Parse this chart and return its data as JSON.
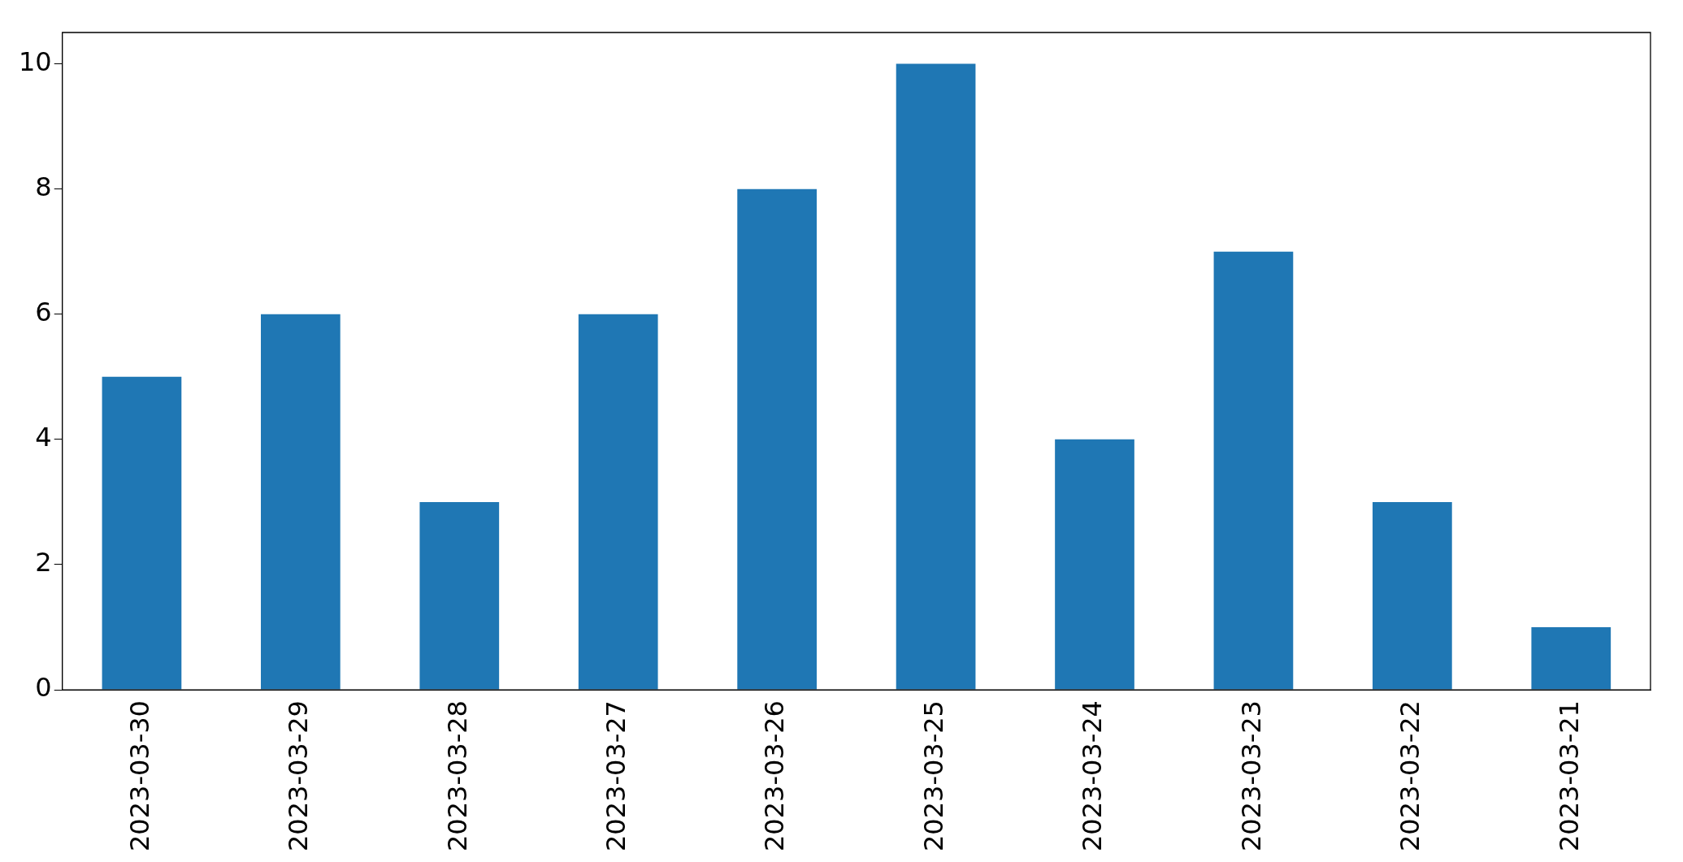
{
  "chart_data": {
    "type": "bar",
    "categories": [
      "2023-03-30",
      "2023-03-29",
      "2023-03-28",
      "2023-03-27",
      "2023-03-26",
      "2023-03-25",
      "2023-03-24",
      "2023-03-23",
      "2023-03-22",
      "2023-03-21"
    ],
    "values": [
      5,
      6,
      3,
      6,
      8,
      10,
      4,
      7,
      3,
      1
    ],
    "color": "#1f77b4",
    "ylim": [
      0,
      10.5
    ],
    "yticks": [
      0,
      2,
      4,
      6,
      8,
      10
    ],
    "grid": false,
    "legend": false
  }
}
